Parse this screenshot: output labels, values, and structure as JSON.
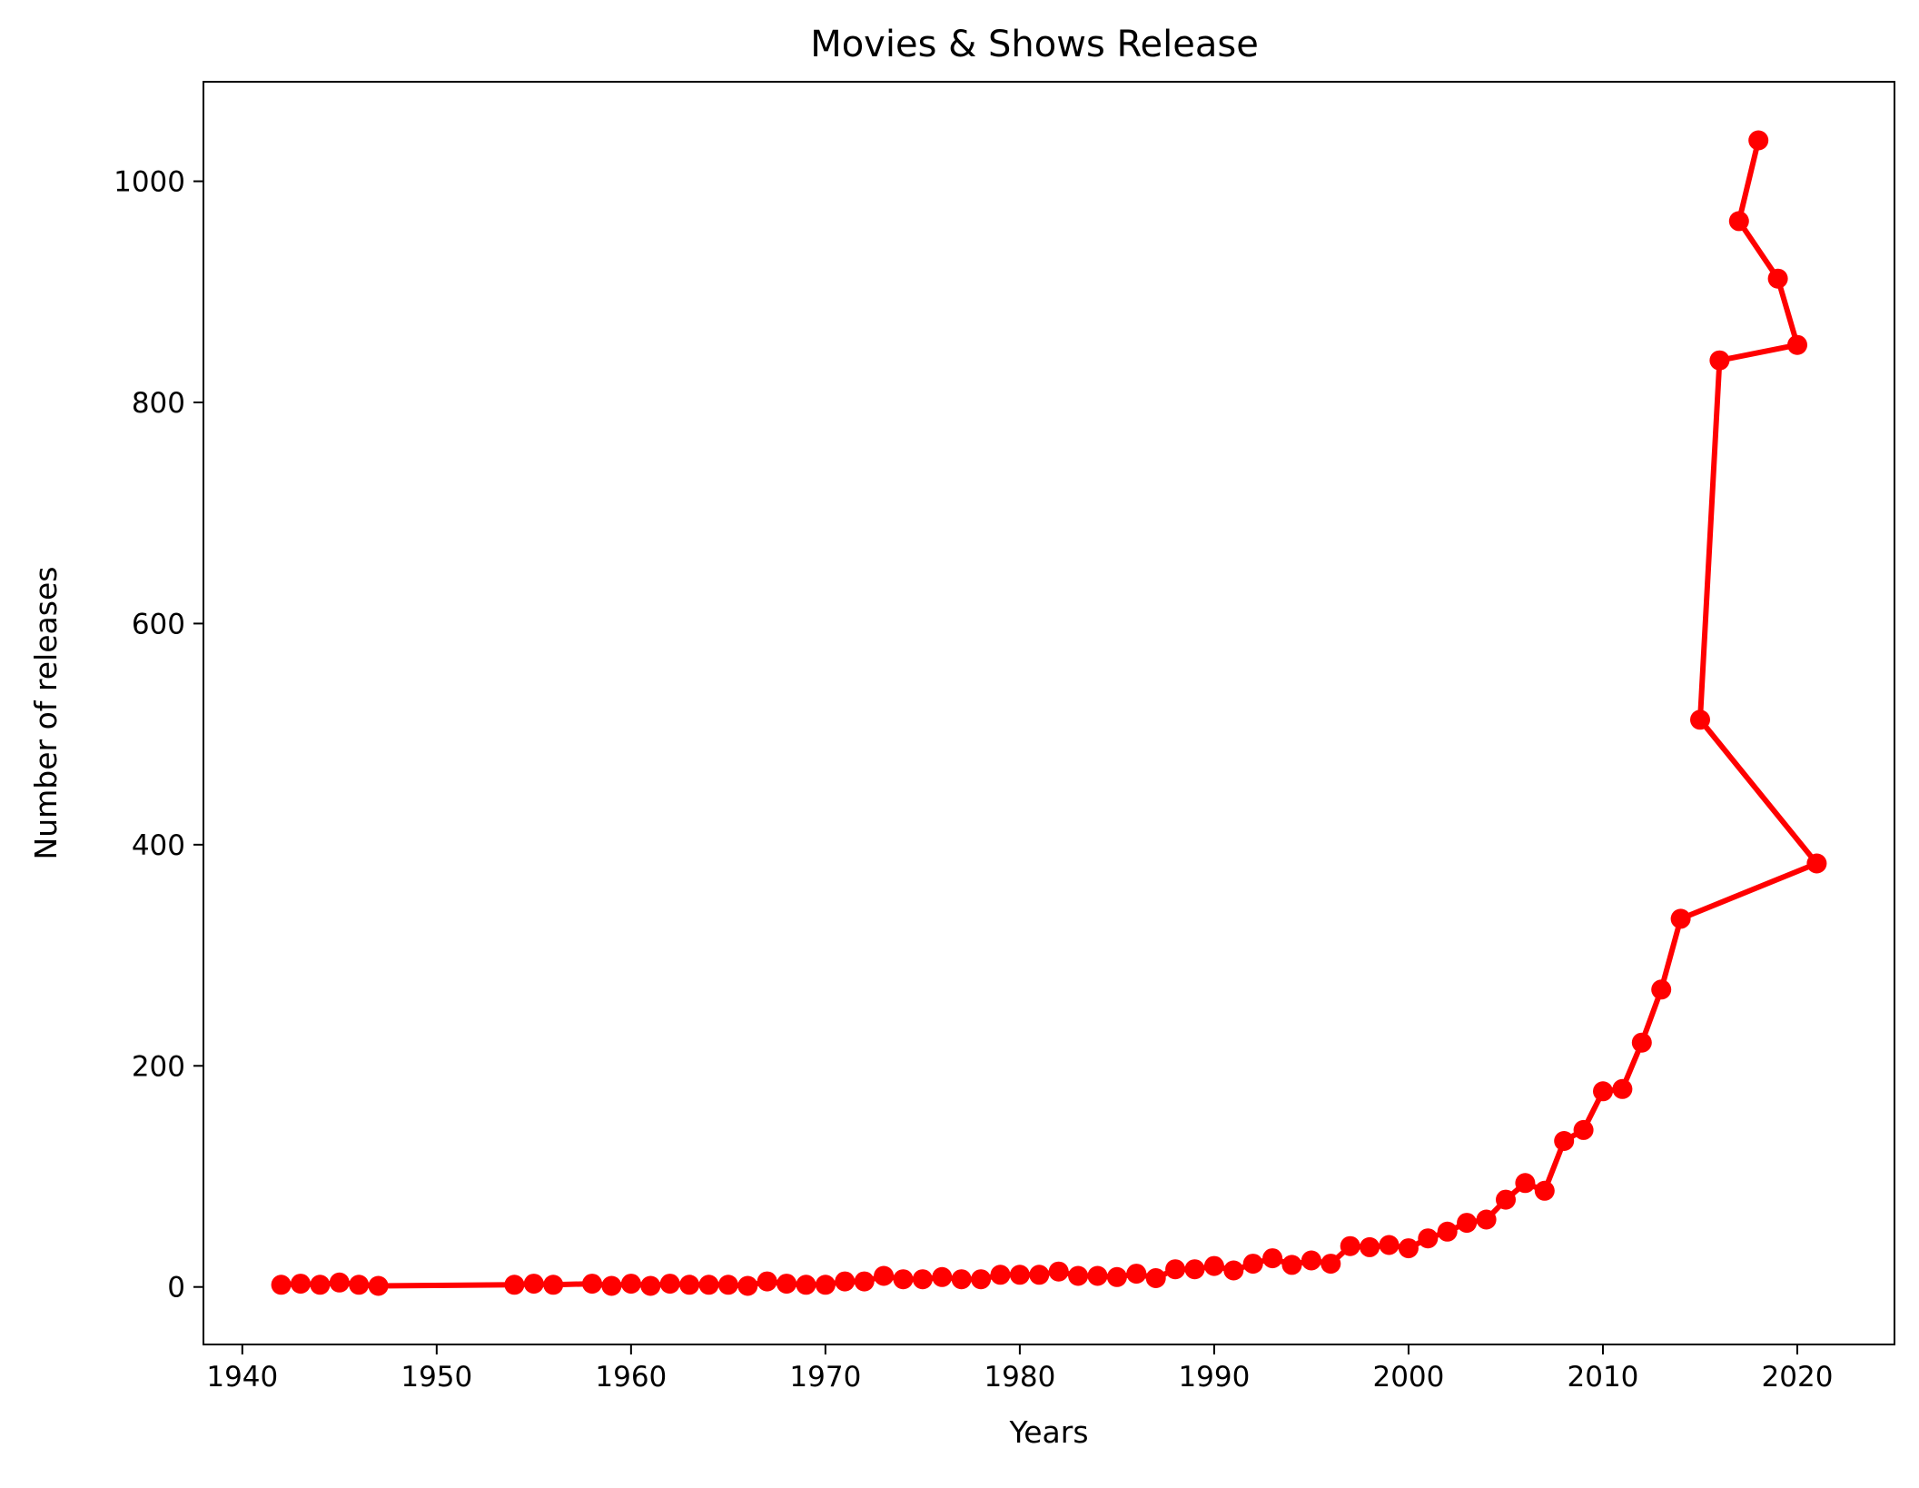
{
  "chart_data": {
    "type": "line",
    "title": "Movies & Shows Release",
    "xlabel": "Years",
    "ylabel": "Number of releases",
    "xlim": [
      1938,
      2025
    ],
    "ylim": [
      -52,
      1090
    ],
    "xticks": [
      1940,
      1950,
      1960,
      1970,
      1980,
      1990,
      2000,
      2010,
      2020
    ],
    "yticks": [
      0,
      200,
      400,
      600,
      800,
      1000
    ],
    "grid": false,
    "color": "#ff0000",
    "series": [
      {
        "x": [
          1942,
          1943,
          1944,
          1945,
          1946,
          1947,
          1954,
          1955,
          1956,
          1958,
          1959,
          1960,
          1961,
          1962,
          1963,
          1964,
          1965,
          1966,
          1967,
          1968,
          1969,
          1970,
          1971,
          1972,
          1973,
          1974,
          1975,
          1976,
          1977,
          1978,
          1979,
          1980,
          1981,
          1982,
          1983,
          1984,
          1985,
          1986,
          1987,
          1988,
          1989,
          1990,
          1991,
          1992,
          1993,
          1994,
          1995,
          1996,
          1997,
          1998,
          1999,
          2000,
          2001,
          2002,
          2003,
          2004,
          2005,
          2006,
          2007,
          2008,
          2009,
          2010,
          2011,
          2012,
          2013,
          2014,
          2021,
          2015,
          2016,
          2020,
          2019,
          2017,
          2018
        ],
        "values": [
          2,
          3,
          2,
          4,
          2,
          1,
          2,
          3,
          2,
          3,
          1,
          3,
          1,
          3,
          2,
          2,
          2,
          1,
          5,
          3,
          2,
          2,
          5,
          5,
          10,
          7,
          7,
          9,
          7,
          7,
          11,
          11,
          11,
          14,
          10,
          10,
          9,
          12,
          8,
          16,
          16,
          19,
          15,
          21,
          26,
          20,
          24,
          21,
          37,
          36,
          38,
          35,
          44,
          50,
          58,
          61,
          79,
          94,
          87,
          132,
          142,
          177,
          179,
          221,
          269,
          333,
          383,
          513,
          838,
          852,
          912,
          964,
          1037
        ]
      }
    ]
  }
}
